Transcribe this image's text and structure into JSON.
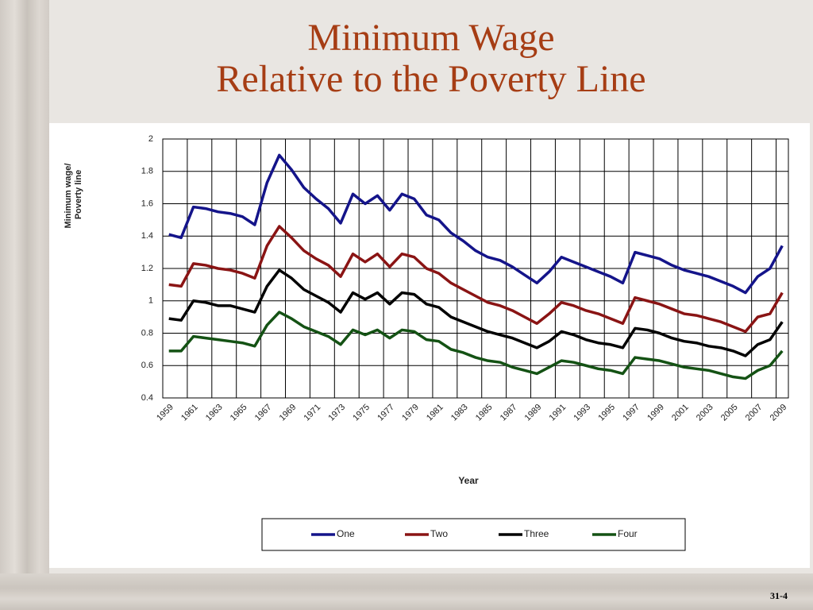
{
  "slide": {
    "title": [
      "Minimum Wage",
      "Relative to the Poverty Line"
    ],
    "page_number": "31-4"
  },
  "chart_data": {
    "type": "line",
    "ylabel": [
      "Minimum wage/",
      "Poverty  line"
    ],
    "xlabel": "Year",
    "x": [
      1959,
      1960,
      1961,
      1962,
      1963,
      1964,
      1965,
      1966,
      1967,
      1968,
      1969,
      1970,
      1971,
      1972,
      1973,
      1974,
      1975,
      1976,
      1977,
      1978,
      1979,
      1980,
      1981,
      1982,
      1983,
      1984,
      1985,
      1986,
      1987,
      1988,
      1989,
      1990,
      1991,
      1992,
      1993,
      1994,
      1995,
      1996,
      1997,
      1998,
      1999,
      2000,
      2001,
      2002,
      2003,
      2004,
      2005,
      2006,
      2007,
      2008,
      2009
    ],
    "xlim": [
      1958.5,
      2009.5
    ],
    "xticks": [
      1959,
      1961,
      1963,
      1965,
      1967,
      1969,
      1971,
      1973,
      1975,
      1977,
      1979,
      1981,
      1983,
      1985,
      1987,
      1989,
      1991,
      1993,
      1995,
      1997,
      1999,
      2001,
      2003,
      2005,
      2007,
      2009
    ],
    "ylim": [
      0.4,
      2
    ],
    "yticks": [
      0.4,
      0.6,
      0.8,
      1,
      1.2,
      1.4,
      1.6,
      1.8,
      2
    ],
    "grid": true,
    "legend": "bottom",
    "series": [
      {
        "name": "One",
        "color": "#14148a",
        "values": [
          1.41,
          1.39,
          1.58,
          1.57,
          1.55,
          1.54,
          1.52,
          1.47,
          1.73,
          1.9,
          1.81,
          1.7,
          1.63,
          1.57,
          1.48,
          1.66,
          1.6,
          1.65,
          1.56,
          1.66,
          1.63,
          1.53,
          1.5,
          1.42,
          1.37,
          1.31,
          1.27,
          1.25,
          1.21,
          1.16,
          1.11,
          1.18,
          1.27,
          1.24,
          1.21,
          1.18,
          1.15,
          1.11,
          1.3,
          1.28,
          1.26,
          1.22,
          1.19,
          1.17,
          1.15,
          1.12,
          1.09,
          1.05,
          1.15,
          1.2,
          1.34
        ]
      },
      {
        "name": "Two",
        "color": "#8a1414",
        "values": [
          1.1,
          1.09,
          1.23,
          1.22,
          1.2,
          1.19,
          1.17,
          1.14,
          1.34,
          1.46,
          1.39,
          1.31,
          1.26,
          1.22,
          1.15,
          1.29,
          1.24,
          1.29,
          1.21,
          1.29,
          1.27,
          1.2,
          1.17,
          1.11,
          1.07,
          1.03,
          0.99,
          0.97,
          0.94,
          0.9,
          0.86,
          0.92,
          0.99,
          0.97,
          0.94,
          0.92,
          0.89,
          0.86,
          1.02,
          1.0,
          0.98,
          0.95,
          0.92,
          0.91,
          0.89,
          0.87,
          0.84,
          0.81,
          0.9,
          0.92,
          1.05
        ]
      },
      {
        "name": "Three",
        "color": "#000000",
        "values": [
          0.89,
          0.88,
          1.0,
          0.99,
          0.97,
          0.97,
          0.95,
          0.93,
          1.09,
          1.19,
          1.14,
          1.07,
          1.03,
          0.99,
          0.93,
          1.05,
          1.01,
          1.05,
          0.98,
          1.05,
          1.04,
          0.98,
          0.96,
          0.9,
          0.87,
          0.84,
          0.81,
          0.79,
          0.77,
          0.74,
          0.71,
          0.75,
          0.81,
          0.79,
          0.76,
          0.74,
          0.73,
          0.71,
          0.83,
          0.82,
          0.8,
          0.77,
          0.75,
          0.74,
          0.72,
          0.71,
          0.69,
          0.66,
          0.73,
          0.76,
          0.87
        ]
      },
      {
        "name": "Four",
        "color": "#145214",
        "values": [
          0.69,
          0.69,
          0.78,
          0.77,
          0.76,
          0.75,
          0.74,
          0.72,
          0.85,
          0.93,
          0.89,
          0.84,
          0.81,
          0.78,
          0.73,
          0.82,
          0.79,
          0.82,
          0.77,
          0.82,
          0.81,
          0.76,
          0.75,
          0.7,
          0.68,
          0.65,
          0.63,
          0.62,
          0.59,
          0.57,
          0.55,
          0.59,
          0.63,
          0.62,
          0.6,
          0.58,
          0.57,
          0.55,
          0.65,
          0.64,
          0.63,
          0.61,
          0.59,
          0.58,
          0.57,
          0.55,
          0.53,
          0.52,
          0.57,
          0.6,
          0.69
        ]
      }
    ]
  }
}
